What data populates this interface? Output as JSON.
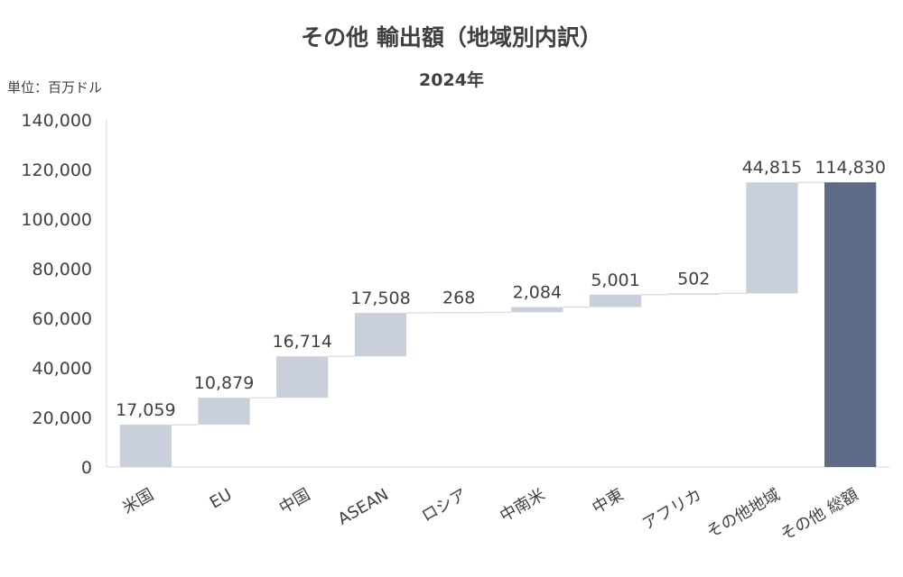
{
  "chart_data": {
    "type": "bar",
    "variant": "waterfall",
    "title": "その他 輸出額（地域別内訳）",
    "subtitle": "2024年",
    "unit_label": "単位：百万ドル",
    "categories": [
      "米国",
      "EU",
      "中国",
      "ASEAN",
      "ロシア",
      "中南米",
      "中東",
      "アフリカ",
      "その他地域",
      "その他 総額"
    ],
    "values": [
      17059,
      10879,
      16714,
      17508,
      268,
      2084,
      5001,
      502,
      44815,
      114830
    ],
    "value_labels": [
      "17,059",
      "10,879",
      "16,714",
      "17,508",
      "268",
      "2,084",
      "5,001",
      "502",
      "44,815",
      "114,830"
    ],
    "total_index": 9,
    "ylim": [
      0,
      140000
    ],
    "yticks": [
      0,
      20000,
      40000,
      60000,
      80000,
      100000,
      120000,
      140000
    ],
    "ytick_labels": [
      "0",
      "20,000",
      "40,000",
      "60,000",
      "80,000",
      "100,000",
      "120,000",
      "140,000"
    ],
    "grid": false,
    "legend": "none",
    "colors": {
      "increment": "#c9cfdb",
      "total": "#5e6b87",
      "axis": "#d9d9d9",
      "connector": "#d9d9d9"
    }
  }
}
